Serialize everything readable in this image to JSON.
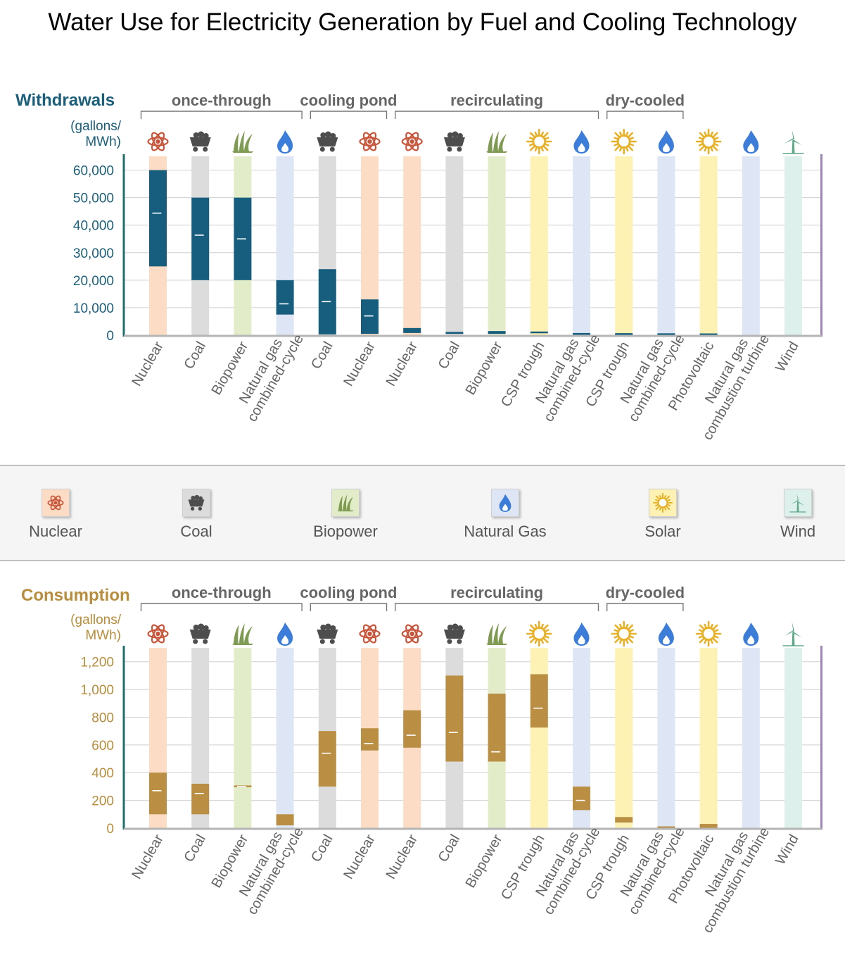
{
  "title": "Water Use for Electricity Generation by Fuel and Cooling Technology",
  "colors": {
    "nuclear": "#fcdcc4",
    "coal": "#dcdcdc",
    "biopower": "#e3ecc8",
    "gas": "#dee6f5",
    "solar": "#fdf2b4",
    "wind": "#def0ec",
    "withdrawals_bar": "#175e7e",
    "consumption_bar": "#ba8f43",
    "withdrawals_accent": "#1c5f7a",
    "consumption_accent": "#b88d3c",
    "left_axis": "#1f6f6a",
    "right_axis": "#9d85b8"
  },
  "legend": [
    {
      "key": "nuclear",
      "label": "Nuclear",
      "icon": "nuclear-icon"
    },
    {
      "key": "coal",
      "label": "Coal",
      "icon": "coal-cart-icon"
    },
    {
      "key": "biopower",
      "label": "Biopower",
      "icon": "grass-icon"
    },
    {
      "key": "gas",
      "label": "Natural Gas",
      "icon": "flame-icon"
    },
    {
      "key": "solar",
      "label": "Solar",
      "icon": "sun-icon"
    },
    {
      "key": "wind",
      "label": "Wind",
      "icon": "wind-turbine-icon"
    }
  ],
  "chart_data": [
    {
      "type": "bar",
      "panel": "withdrawals",
      "title": "Withdrawals",
      "ylabel": "(gallons/ MWh)",
      "ylim": [
        0,
        65000
      ],
      "yticks": [
        0,
        10000,
        20000,
        30000,
        40000,
        50000,
        60000
      ],
      "ytick_labels": [
        "0",
        "10,000",
        "20,000",
        "30,000",
        "40,000",
        "50,000",
        "60,000"
      ],
      "groups": [
        {
          "label": "once-through",
          "start": 0,
          "end": 3
        },
        {
          "label": "cooling pond",
          "start": 4,
          "end": 5
        },
        {
          "label": "recirculating",
          "start": 6,
          "end": 10
        },
        {
          "label": "dry-cooled",
          "start": 11,
          "end": 12
        }
      ],
      "categories": [
        "Nuclear",
        "Coal",
        "Biopower",
        "Natural gas combined-cycle",
        "Coal",
        "Nuclear",
        "Nuclear",
        "Coal",
        "Biopower",
        "CSP trough",
        "Natural gas combined-cycle",
        "CSP trough",
        "Natural gas combined-cycle",
        "Photovoltaic",
        "Natural gas combustion turbine",
        "Wind"
      ],
      "fuels": [
        "nuclear",
        "coal",
        "biopower",
        "gas",
        "coal",
        "nuclear",
        "nuclear",
        "coal",
        "biopower",
        "solar",
        "gas",
        "solar",
        "gas",
        "solar",
        "gas",
        "wind"
      ],
      "ranges": [
        [
          25000,
          60000
        ],
        [
          20000,
          50000
        ],
        [
          20000,
          50000
        ],
        [
          7500,
          20000
        ],
        [
          300,
          24000
        ],
        [
          500,
          13000
        ],
        [
          800,
          2600
        ],
        [
          500,
          1200
        ],
        [
          500,
          1500
        ],
        [
          700,
          1100
        ],
        [
          150,
          400
        ],
        [
          100,
          200
        ],
        [
          50,
          200
        ],
        [
          0,
          200
        ],
        [
          0,
          0
        ],
        [
          0,
          0
        ]
      ],
      "medians": [
        44350,
        36350,
        35000,
        11400,
        12200,
        7000,
        null,
        null,
        null,
        null,
        null,
        null,
        null,
        null,
        null,
        null
      ]
    },
    {
      "type": "bar",
      "panel": "consumption",
      "title": "Consumption",
      "ylabel": "(gallons/ MWh)",
      "ylim": [
        0,
        1300
      ],
      "yticks": [
        0,
        200,
        400,
        600,
        800,
        1000,
        1200
      ],
      "ytick_labels": [
        "0",
        "200",
        "400",
        "600",
        "800",
        "1,000",
        "1,200"
      ],
      "groups": [
        {
          "label": "once-through",
          "start": 0,
          "end": 3
        },
        {
          "label": "cooling pond",
          "start": 4,
          "end": 5
        },
        {
          "label": "recirculating",
          "start": 6,
          "end": 10
        },
        {
          "label": "dry-cooled",
          "start": 11,
          "end": 12
        }
      ],
      "categories": [
        "Nuclear",
        "Coal",
        "Biopower",
        "Natural gas combined-cycle",
        "Coal",
        "Nuclear",
        "Nuclear",
        "Coal",
        "Biopower",
        "CSP trough",
        "Natural gas combined-cycle",
        "CSP trough",
        "Natural gas combined-cycle",
        "Photovoltaic",
        "Natural gas combustion turbine",
        "Wind"
      ],
      "fuels": [
        "nuclear",
        "coal",
        "biopower",
        "gas",
        "coal",
        "nuclear",
        "nuclear",
        "coal",
        "biopower",
        "solar",
        "gas",
        "solar",
        "gas",
        "solar",
        "gas",
        "wind"
      ],
      "ranges": [
        [
          100,
          400
        ],
        [
          100,
          320
        ],
        [
          295,
          305
        ],
        [
          20,
          100
        ],
        [
          300,
          700
        ],
        [
          560,
          720
        ],
        [
          580,
          850
        ],
        [
          480,
          1100
        ],
        [
          480,
          970
        ],
        [
          725,
          1110
        ],
        [
          130,
          300
        ],
        [
          40,
          80
        ],
        [
          0,
          5
        ],
        [
          0,
          30
        ],
        [
          0,
          0
        ],
        [
          0,
          0
        ]
      ],
      "medians": [
        270,
        250,
        300,
        null,
        540,
        610,
        670,
        690,
        550,
        865,
        200,
        null,
        null,
        null,
        null,
        null
      ]
    }
  ]
}
